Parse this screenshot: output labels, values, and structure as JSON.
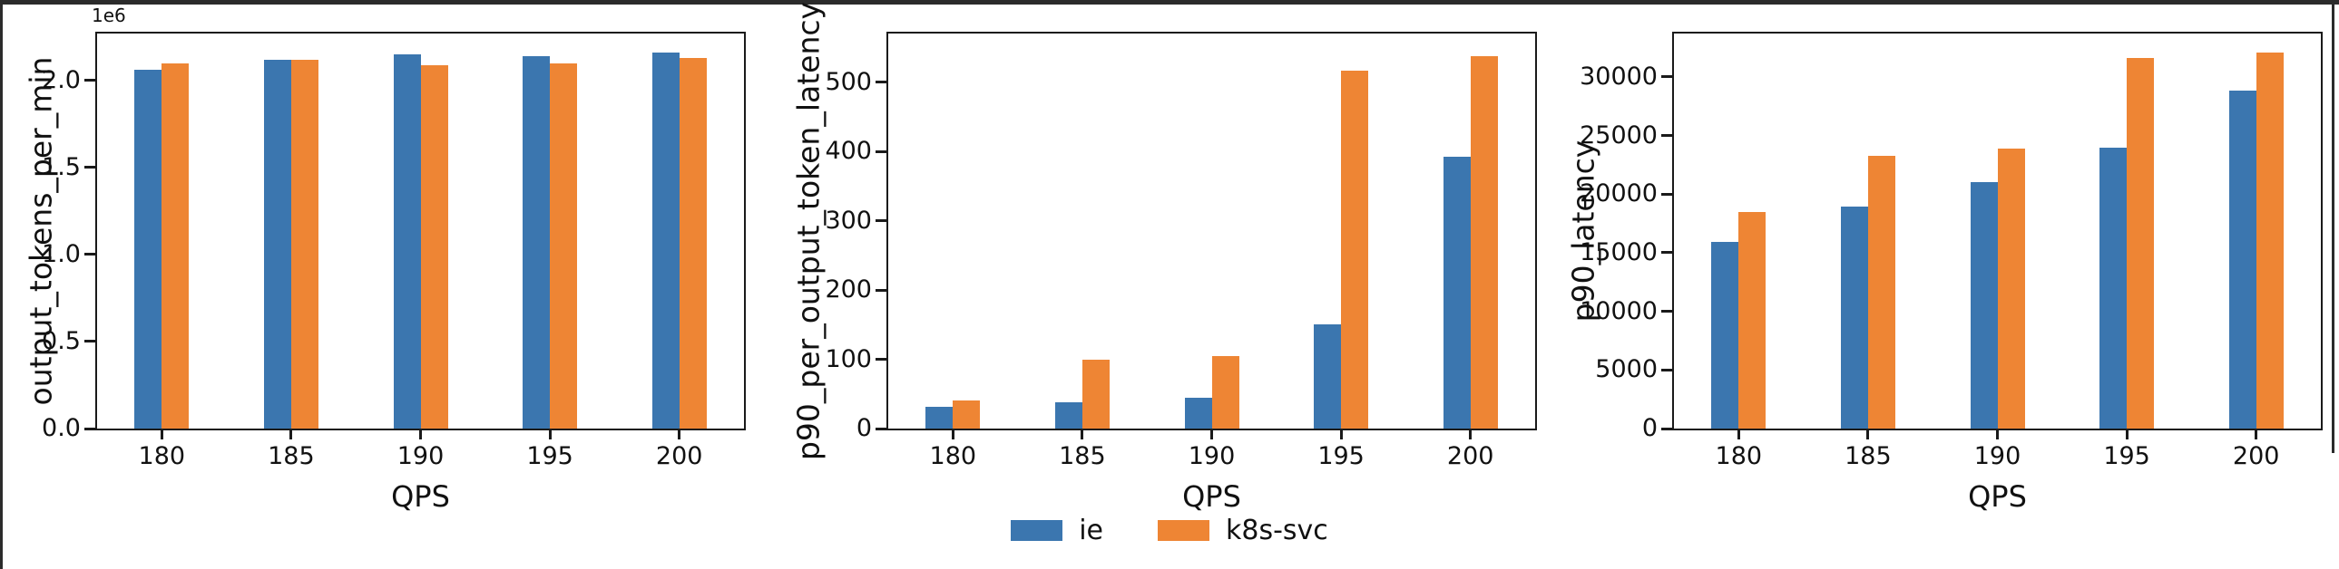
{
  "figure": {
    "background": "#ffffff",
    "frame_color": "#2b2b2b",
    "spine_color": "#1a1a1a",
    "series_colors": {
      "ie": "#3b76af",
      "k8s_svc": "#ee8534"
    }
  },
  "legend": {
    "items": [
      {
        "label": "ie",
        "color": "#3b76af"
      },
      {
        "label": "k8s-svc",
        "color": "#ee8534"
      }
    ]
  },
  "chart_data": [
    {
      "type": "bar",
      "title": "",
      "xlabel": "QPS",
      "ylabel": "output_tokens_per_min",
      "y_offset_label": "1e6",
      "categories": [
        "180",
        "185",
        "190",
        "195",
        "200"
      ],
      "series": [
        {
          "name": "ie",
          "color": "#3b76af",
          "values": [
            2060000,
            2120000,
            2150000,
            2140000,
            2160000
          ]
        },
        {
          "name": "k8s-svc",
          "color": "#ee8534",
          "values": [
            2100000,
            2120000,
            2090000,
            2100000,
            2130000
          ]
        }
      ],
      "ylim": [
        0,
        2270000
      ],
      "yticks": [
        {
          "value": 0,
          "label": "0.0"
        },
        {
          "value": 500000,
          "label": "0.5"
        },
        {
          "value": 1000000,
          "label": "1.0"
        },
        {
          "value": 1500000,
          "label": "1.5"
        },
        {
          "value": 2000000,
          "label": "2.0"
        }
      ],
      "grid": false,
      "legend_position": "none"
    },
    {
      "type": "bar",
      "title": "",
      "xlabel": "QPS",
      "ylabel": "p90_per_output_token_latency",
      "y_offset_label": "",
      "categories": [
        "180",
        "185",
        "190",
        "195",
        "200"
      ],
      "series": [
        {
          "name": "ie",
          "color": "#3b76af",
          "values": [
            32,
            38,
            44,
            150,
            392
          ]
        },
        {
          "name": "k8s-svc",
          "color": "#ee8534",
          "values": [
            40,
            100,
            104,
            516,
            537
          ]
        }
      ],
      "ylim": [
        0,
        570
      ],
      "yticks": [
        {
          "value": 0,
          "label": "0"
        },
        {
          "value": 100,
          "label": "100"
        },
        {
          "value": 200,
          "label": "200"
        },
        {
          "value": 300,
          "label": "300"
        },
        {
          "value": 400,
          "label": "400"
        },
        {
          "value": 500,
          "label": "500"
        }
      ],
      "grid": false,
      "legend_position": "none"
    },
    {
      "type": "bar",
      "title": "",
      "xlabel": "QPS",
      "ylabel": "p90_latency",
      "y_offset_label": "",
      "categories": [
        "180",
        "185",
        "190",
        "195",
        "200"
      ],
      "series": [
        {
          "name": "ie",
          "color": "#3b76af",
          "values": [
            15900,
            18900,
            21000,
            24000,
            28800
          ]
        },
        {
          "name": "k8s-svc",
          "color": "#ee8534",
          "values": [
            18500,
            23300,
            23900,
            31600,
            32100
          ]
        }
      ],
      "ylim": [
        0,
        33700
      ],
      "yticks": [
        {
          "value": 0,
          "label": "0"
        },
        {
          "value": 5000,
          "label": "5000"
        },
        {
          "value": 10000,
          "label": "10000"
        },
        {
          "value": 15000,
          "label": "15000"
        },
        {
          "value": 20000,
          "label": "20000"
        },
        {
          "value": 25000,
          "label": "25000"
        },
        {
          "value": 30000,
          "label": "30000"
        }
      ],
      "grid": false,
      "legend_position": "bottom-center"
    }
  ]
}
